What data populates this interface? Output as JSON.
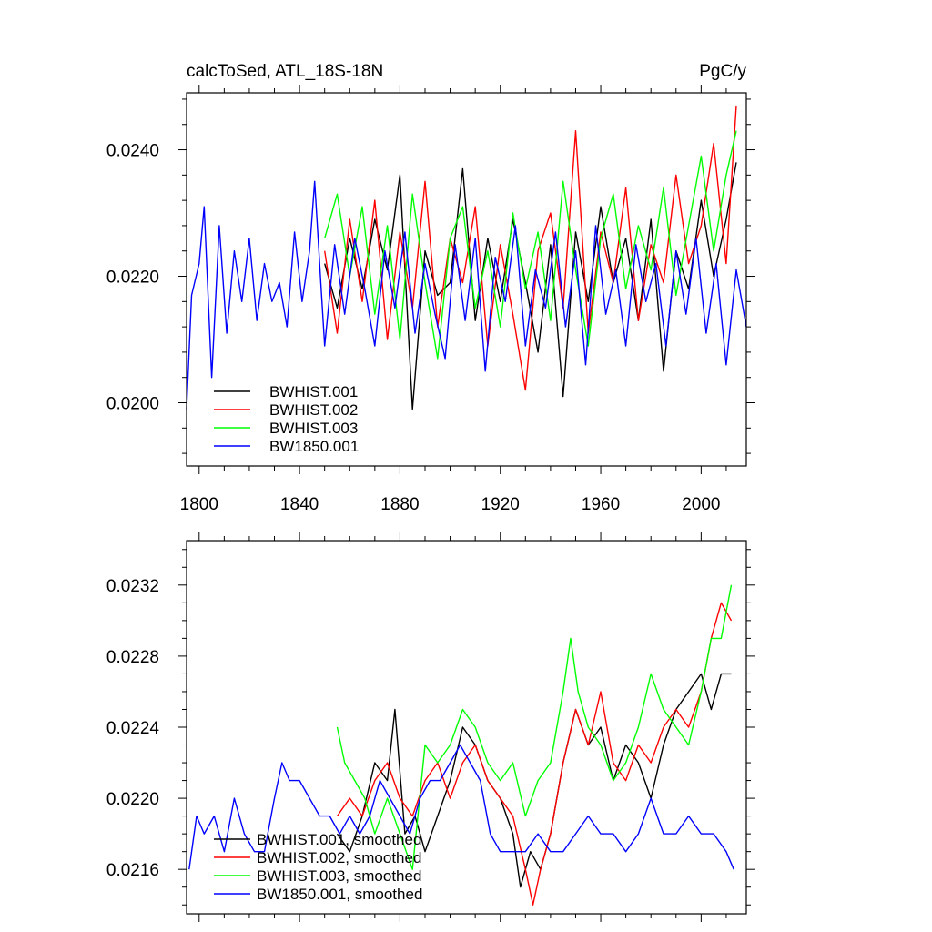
{
  "chart_data": [
    {
      "type": "line",
      "title": "calcToSed, ATL_18S-18N",
      "units": "PgC/y",
      "xlabel": "",
      "ylabel": "",
      "xlim": [
        1795,
        2018
      ],
      "ylim": [
        0.019,
        0.0249
      ],
      "x_ticks": [
        1800,
        1840,
        1880,
        1920,
        1960,
        2000
      ],
      "x_tick_labels": [
        "1800",
        "1840",
        "1880",
        "1920",
        "1960",
        "2000"
      ],
      "y_ticks": [
        0.02,
        0.022,
        0.024
      ],
      "y_tick_labels": [
        "0.0200",
        "0.0220",
        "0.0240"
      ],
      "legend_position": "bottom-left",
      "series": [
        {
          "name": "BWHIST.001",
          "color": "#000000",
          "x": [
            1850,
            1855,
            1860,
            1865,
            1870,
            1875,
            1880,
            1885,
            1890,
            1895,
            1900,
            1905,
            1910,
            1915,
            1920,
            1925,
            1930,
            1935,
            1940,
            1945,
            1950,
            1955,
            1960,
            1965,
            1970,
            1975,
            1980,
            1985,
            1990,
            1995,
            2000,
            2005,
            2010,
            2014
          ],
          "values": [
            0.0222,
            0.0215,
            0.0226,
            0.0218,
            0.0229,
            0.0221,
            0.0236,
            0.0199,
            0.0224,
            0.0217,
            0.0219,
            0.0237,
            0.0213,
            0.0226,
            0.0216,
            0.0229,
            0.0219,
            0.0208,
            0.0225,
            0.0201,
            0.0227,
            0.0216,
            0.0231,
            0.0219,
            0.0226,
            0.0213,
            0.0229,
            0.0205,
            0.0224,
            0.0218,
            0.0232,
            0.022,
            0.0229,
            0.0238
          ]
        },
        {
          "name": "BWHIST.002",
          "color": "#ff0000",
          "x": [
            1850,
            1855,
            1860,
            1865,
            1870,
            1875,
            1880,
            1885,
            1890,
            1895,
            1900,
            1905,
            1910,
            1915,
            1920,
            1925,
            1930,
            1935,
            1940,
            1945,
            1950,
            1955,
            1960,
            1965,
            1970,
            1975,
            1980,
            1985,
            1990,
            1995,
            2000,
            2005,
            2010,
            2014
          ],
          "values": [
            0.0224,
            0.0211,
            0.0229,
            0.0216,
            0.0232,
            0.021,
            0.0227,
            0.0215,
            0.0235,
            0.0212,
            0.0226,
            0.0219,
            0.0231,
            0.0209,
            0.0225,
            0.0214,
            0.0202,
            0.0224,
            0.023,
            0.0215,
            0.0243,
            0.0211,
            0.0227,
            0.0219,
            0.0234,
            0.0213,
            0.0225,
            0.0219,
            0.0236,
            0.0222,
            0.0228,
            0.0241,
            0.0222,
            0.0247
          ]
        },
        {
          "name": "BWHIST.003",
          "color": "#00ff00",
          "x": [
            1850,
            1855,
            1860,
            1865,
            1870,
            1875,
            1880,
            1885,
            1890,
            1895,
            1900,
            1905,
            1910,
            1915,
            1920,
            1925,
            1930,
            1935,
            1940,
            1945,
            1950,
            1955,
            1960,
            1965,
            1970,
            1975,
            1980,
            1985,
            1990,
            1995,
            2000,
            2005,
            2010,
            2014
          ],
          "values": [
            0.0226,
            0.0233,
            0.022,
            0.0231,
            0.0214,
            0.0228,
            0.021,
            0.0233,
            0.0219,
            0.0207,
            0.0226,
            0.0231,
            0.0215,
            0.0224,
            0.0212,
            0.023,
            0.0218,
            0.0227,
            0.0213,
            0.0235,
            0.0221,
            0.0209,
            0.0226,
            0.0233,
            0.0218,
            0.0228,
            0.0221,
            0.0234,
            0.0217,
            0.0228,
            0.0239,
            0.0224,
            0.0236,
            0.0243
          ]
        },
        {
          "name": "BW1850.001",
          "color": "#0000ff",
          "x": [
            1795,
            1797,
            1800,
            1802,
            1805,
            1808,
            1811,
            1814,
            1817,
            1820,
            1823,
            1826,
            1829,
            1832,
            1835,
            1838,
            1841,
            1844,
            1846,
            1850,
            1854,
            1858,
            1862,
            1866,
            1870,
            1874,
            1878,
            1882,
            1886,
            1890,
            1894,
            1898,
            1902,
            1906,
            1910,
            1914,
            1918,
            1922,
            1926,
            1930,
            1934,
            1938,
            1942,
            1946,
            1950,
            1954,
            1958,
            1962,
            1966,
            1970,
            1974,
            1978,
            1982,
            1986,
            1990,
            1994,
            1998,
            2002,
            2006,
            2010,
            2014,
            2018
          ],
          "values": [
            0.0199,
            0.0217,
            0.0222,
            0.0231,
            0.0204,
            0.0228,
            0.0211,
            0.0224,
            0.0216,
            0.0226,
            0.0213,
            0.0222,
            0.0216,
            0.0219,
            0.0212,
            0.0227,
            0.0216,
            0.0224,
            0.0235,
            0.0209,
            0.0225,
            0.0214,
            0.0226,
            0.0218,
            0.0209,
            0.0224,
            0.0215,
            0.0227,
            0.0211,
            0.0222,
            0.0214,
            0.0207,
            0.0225,
            0.0213,
            0.0226,
            0.0205,
            0.0223,
            0.0216,
            0.0228,
            0.0209,
            0.0221,
            0.0215,
            0.0227,
            0.0212,
            0.0224,
            0.0206,
            0.0228,
            0.0214,
            0.0221,
            0.0209,
            0.0225,
            0.0216,
            0.0222,
            0.0209,
            0.0224,
            0.0214,
            0.0226,
            0.0211,
            0.0222,
            0.0206,
            0.0221,
            0.0212
          ]
        }
      ]
    },
    {
      "type": "line",
      "title": "",
      "units": "",
      "xlabel": "",
      "ylabel": "",
      "xlim": [
        1795,
        2018
      ],
      "ylim": [
        0.02135,
        0.02345
      ],
      "x_ticks": [
        1800,
        1840,
        1880,
        1920,
        1960,
        2000
      ],
      "x_tick_labels": [],
      "y_ticks": [
        0.0216,
        0.022,
        0.0224,
        0.0228,
        0.0232
      ],
      "y_tick_labels": [
        "0.0216",
        "0.0220",
        "0.0224",
        "0.0228",
        "0.0232"
      ],
      "legend_position": "bottom-left",
      "series": [
        {
          "name": "BWHIST.001, smoothed",
          "color": "#000000",
          "x": [
            1855,
            1860,
            1865,
            1870,
            1875,
            1878,
            1882,
            1886,
            1890,
            1895,
            1900,
            1905,
            1910,
            1915,
            1920,
            1925,
            1928,
            1932,
            1936,
            1940,
            1945,
            1950,
            1955,
            1960,
            1965,
            1970,
            1975,
            1980,
            1985,
            1990,
            1995,
            2000,
            2004,
            2008,
            2012
          ],
          "values": [
            0.0218,
            0.0217,
            0.0219,
            0.0222,
            0.0221,
            0.0225,
            0.0218,
            0.0219,
            0.0217,
            0.0219,
            0.0221,
            0.0224,
            0.0223,
            0.0221,
            0.022,
            0.0218,
            0.0215,
            0.0217,
            0.0216,
            0.0218,
            0.0222,
            0.0225,
            0.0223,
            0.0224,
            0.0221,
            0.0223,
            0.0222,
            0.022,
            0.0223,
            0.0225,
            0.0226,
            0.0227,
            0.0225,
            0.0227,
            0.0227
          ]
        },
        {
          "name": "BWHIST.002, smoothed",
          "color": "#ff0000",
          "x": [
            1855,
            1860,
            1865,
            1870,
            1875,
            1880,
            1885,
            1890,
            1895,
            1900,
            1905,
            1910,
            1915,
            1920,
            1925,
            1930,
            1933,
            1936,
            1940,
            1945,
            1950,
            1955,
            1960,
            1965,
            1970,
            1975,
            1980,
            1985,
            1990,
            1995,
            2000,
            2004,
            2008,
            2012
          ],
          "values": [
            0.0219,
            0.022,
            0.0219,
            0.0221,
            0.0222,
            0.022,
            0.0219,
            0.0221,
            0.0222,
            0.022,
            0.0222,
            0.0223,
            0.0221,
            0.022,
            0.0219,
            0.0216,
            0.0214,
            0.0216,
            0.0218,
            0.0222,
            0.0225,
            0.0223,
            0.0226,
            0.0222,
            0.0221,
            0.0223,
            0.0222,
            0.0224,
            0.0225,
            0.0224,
            0.0226,
            0.0229,
            0.0231,
            0.023
          ]
        },
        {
          "name": "BWHIST.003, smoothed",
          "color": "#00ff00",
          "x": [
            1855,
            1858,
            1862,
            1866,
            1870,
            1875,
            1880,
            1885,
            1890,
            1895,
            1900,
            1905,
            1910,
            1915,
            1920,
            1925,
            1930,
            1935,
            1940,
            1945,
            1948,
            1951,
            1955,
            1960,
            1965,
            1970,
            1975,
            1980,
            1985,
            1990,
            1995,
            2000,
            2004,
            2008,
            2012
          ],
          "values": [
            0.0224,
            0.0222,
            0.0221,
            0.022,
            0.0218,
            0.022,
            0.0218,
            0.0216,
            0.0223,
            0.0222,
            0.0223,
            0.0225,
            0.0224,
            0.0222,
            0.0221,
            0.0222,
            0.0219,
            0.0221,
            0.0222,
            0.0226,
            0.0229,
            0.0226,
            0.0224,
            0.0223,
            0.0221,
            0.0222,
            0.0224,
            0.0227,
            0.0225,
            0.0224,
            0.0223,
            0.0226,
            0.0229,
            0.0229,
            0.0232
          ]
        },
        {
          "name": "BW1850.001, smoothed",
          "color": "#0000ff",
          "x": [
            1796,
            1799,
            1802,
            1806,
            1810,
            1814,
            1818,
            1822,
            1826,
            1830,
            1833,
            1836,
            1840,
            1844,
            1848,
            1852,
            1856,
            1860,
            1864,
            1868,
            1872,
            1876,
            1880,
            1884,
            1888,
            1892,
            1896,
            1900,
            1904,
            1908,
            1912,
            1916,
            1920,
            1925,
            1930,
            1935,
            1940,
            1945,
            1950,
            1955,
            1960,
            1965,
            1970,
            1975,
            1980,
            1985,
            1990,
            1995,
            2000,
            2005,
            2010,
            2013
          ],
          "values": [
            0.0216,
            0.0219,
            0.0218,
            0.0219,
            0.0217,
            0.022,
            0.0218,
            0.0217,
            0.0217,
            0.022,
            0.0222,
            0.0221,
            0.0221,
            0.022,
            0.0219,
            0.0219,
            0.0218,
            0.0219,
            0.0218,
            0.0219,
            0.0221,
            0.022,
            0.0219,
            0.0218,
            0.022,
            0.0221,
            0.0221,
            0.0222,
            0.0223,
            0.0222,
            0.0221,
            0.0218,
            0.0217,
            0.0217,
            0.0217,
            0.0218,
            0.0217,
            0.0217,
            0.0218,
            0.0219,
            0.0218,
            0.0218,
            0.0217,
            0.0218,
            0.022,
            0.0218,
            0.0218,
            0.0219,
            0.0218,
            0.0218,
            0.0217,
            0.0216
          ]
        }
      ]
    }
  ]
}
